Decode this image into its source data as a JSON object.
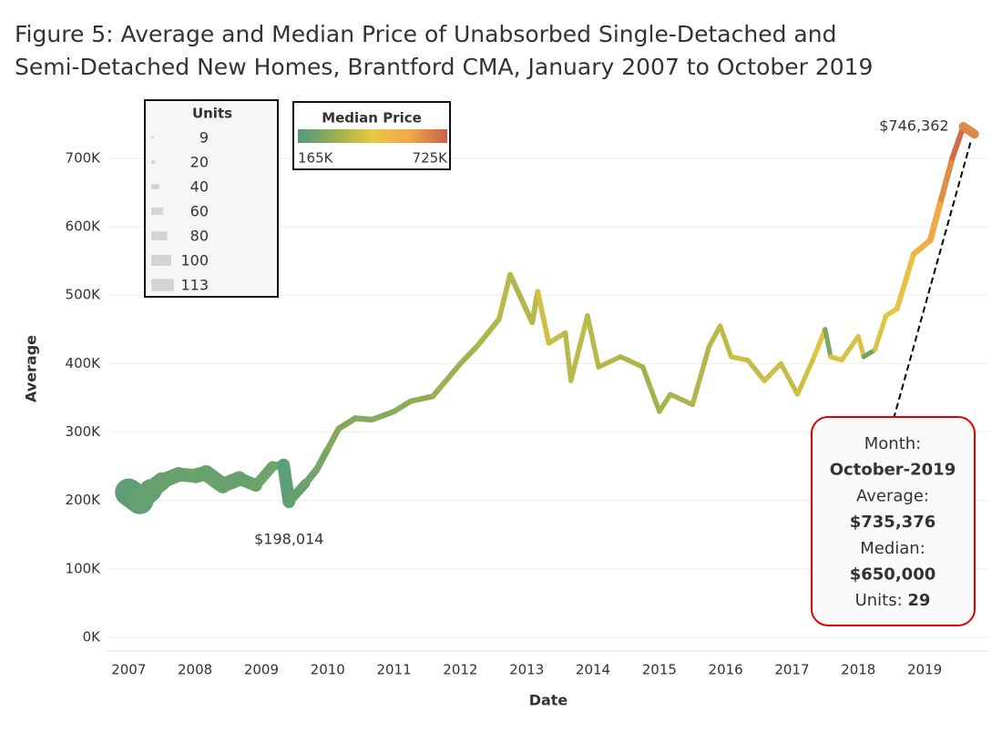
{
  "chart_data": {
    "type": "variable-line",
    "title": [
      "Figure 5: Average and Median Price of Unabsorbed Single-Detached and",
      "Semi-Detached New Homes, Brantford CMA, January 2007 to October 2019"
    ],
    "x_label": "Date",
    "y_label": "Average",
    "x": [
      "2007-01",
      "2007-03",
      "2007-05",
      "2007-07",
      "2007-10",
      "2008-01",
      "2008-03",
      "2008-06",
      "2008-09",
      "2008-12",
      "2009-03",
      "2009-05",
      "2009-06",
      "2009-09",
      "2009-11",
      "2010-01",
      "2010-03",
      "2010-06",
      "2010-09",
      "2011-01",
      "2011-04",
      "2011-08",
      "2012-01",
      "2012-04",
      "2012-08",
      "2012-10",
      "2013-02",
      "2013-03",
      "2013-05",
      "2013-08",
      "2013-09",
      "2013-12",
      "2014-02",
      "2014-06",
      "2014-10",
      "2015-01",
      "2015-03",
      "2015-07",
      "2015-10",
      "2015-12",
      "2016-02",
      "2016-05",
      "2016-08",
      "2016-11",
      "2017-02",
      "2017-05",
      "2017-07",
      "2017-08",
      "2017-10",
      "2018-01",
      "2018-02",
      "2018-04",
      "2018-06",
      "2018-08",
      "2018-11",
      "2019-02",
      "2019-04",
      "2019-06",
      "2019-08",
      "2019-10"
    ],
    "series": [
      {
        "name": "Average",
        "values": [
          212000,
          200000,
          215000,
          228000,
          238000,
          236000,
          240000,
          222000,
          232000,
          222000,
          250000,
          252000,
          198014,
          225000,
          245000,
          275000,
          305000,
          320000,
          318000,
          330000,
          345000,
          352000,
          400000,
          425000,
          465000,
          530000,
          460000,
          505000,
          430000,
          445000,
          375000,
          470000,
          395000,
          410000,
          395000,
          330000,
          355000,
          340000,
          425000,
          455000,
          410000,
          405000,
          375000,
          400000,
          355000,
          410000,
          450000,
          410000,
          405000,
          440000,
          410000,
          420000,
          470000,
          480000,
          560000,
          580000,
          640000,
          700000,
          746362,
          735376
        ]
      },
      {
        "name": "Units",
        "values": [
          100,
          113,
          90,
          70,
          55,
          50,
          55,
          60,
          55,
          45,
          35,
          25,
          45,
          30,
          20,
          18,
          15,
          15,
          14,
          13,
          13,
          13,
          12,
          12,
          12,
          11,
          12,
          12,
          11,
          11,
          10,
          10,
          10,
          10,
          10,
          10,
          10,
          10,
          10,
          10,
          9,
          10,
          10,
          10,
          9,
          9,
          10,
          9,
          10,
          9,
          9,
          9,
          9,
          10,
          12,
          14,
          16,
          14,
          13,
          29
        ]
      },
      {
        "name": "Median Price",
        "values": [
          200000,
          195000,
          205000,
          210000,
          215000,
          215000,
          220000,
          215000,
          215000,
          210000,
          225000,
          225000,
          190000,
          210000,
          225000,
          240000,
          260000,
          265000,
          265000,
          270000,
          285000,
          290000,
          310000,
          320000,
          340000,
          360000,
          350000,
          360000,
          400000,
          390000,
          360000,
          370000,
          360000,
          350000,
          340000,
          320000,
          330000,
          335000,
          350000,
          360000,
          370000,
          390000,
          380000,
          395000,
          380000,
          400000,
          430000,
          250000,
          420000,
          410000,
          420000,
          230000,
          420000,
          430000,
          480000,
          540000,
          580000,
          640000,
          700000,
          650000
        ]
      }
    ],
    "xlim": [
      2006.68,
      2019.96
    ],
    "xticks": [
      2007,
      2008,
      2009,
      2010,
      2011,
      2012,
      2013,
      2014,
      2015,
      2016,
      2017,
      2018,
      2019
    ],
    "ylim": [
      -20000,
      785000
    ],
    "yticks": [
      {
        "value": 0,
        "label": "0K"
      },
      {
        "value": 100000,
        "label": "100K"
      },
      {
        "value": 200000,
        "label": "200K"
      },
      {
        "value": 300000,
        "label": "300K"
      },
      {
        "value": 400000,
        "label": "400K"
      },
      {
        "value": 500000,
        "label": "500K"
      },
      {
        "value": 600000,
        "label": "600K"
      },
      {
        "value": 700000,
        "label": "700K"
      }
    ],
    "grid": true,
    "size_legend": {
      "title": "Units",
      "values": [
        9,
        20,
        40,
        60,
        80,
        100,
        113
      ]
    },
    "color_legend": {
      "title": "Median Price",
      "min": {
        "value": 165000,
        "label": "165K"
      },
      "max": {
        "value": 725000,
        "label": "725K"
      },
      "colors": [
        "#4e9a7e",
        "#9aae50",
        "#e8c840",
        "#f0a848",
        "#c8604a"
      ]
    },
    "annotations": [
      {
        "text": "$198,014",
        "x": "2009-06",
        "y": 198014
      },
      {
        "text": "$746,362",
        "x": "2019-08",
        "y": 746362
      }
    ],
    "tooltip": {
      "lines": [
        [
          "Month:",
          ""
        ],
        [
          "October-2019",
          ""
        ],
        [
          "Average:",
          ""
        ],
        [
          "$735,376",
          ""
        ],
        [
          "Median:",
          ""
        ],
        [
          "$650,000",
          ""
        ],
        [
          "Units: ",
          "29"
        ]
      ]
    }
  }
}
